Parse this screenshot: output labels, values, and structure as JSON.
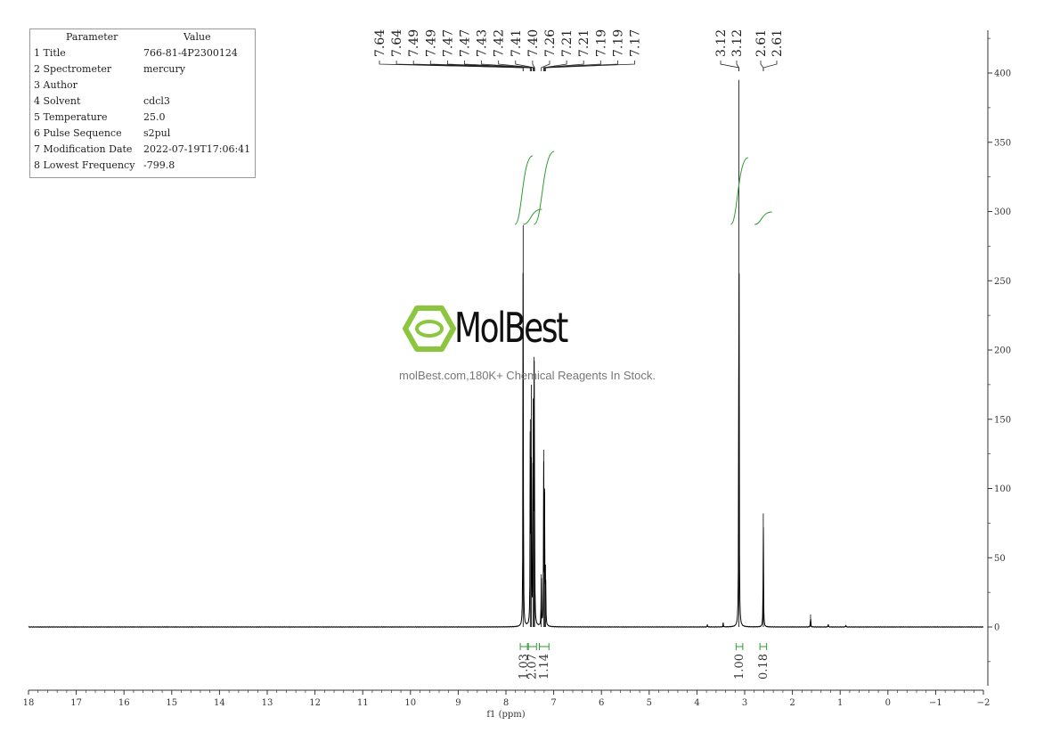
{
  "parameters": {
    "header": {
      "key": "Parameter",
      "value": "Value"
    },
    "rows": [
      {
        "key": "1 Title",
        "value": "766-81-4P2300124"
      },
      {
        "key": "2 Spectrometer",
        "value": "mercury"
      },
      {
        "key": "3 Author",
        "value": ""
      },
      {
        "key": "4 Solvent",
        "value": "cdcl3"
      },
      {
        "key": "5 Temperature",
        "value": "25.0"
      },
      {
        "key": "6 Pulse Sequence",
        "value": "s2pul"
      },
      {
        "key": "7 Modification Date",
        "value": "2022-07-19T17:06:41"
      },
      {
        "key": "8 Lowest Frequency",
        "value": "-799.8"
      }
    ]
  },
  "watermark": {
    "brand": "MolBest",
    "tagline": "molBest.com,180K+ Chemical Reagents In Stock."
  },
  "colors": {
    "spectrum": "#000000",
    "integral": "#2e9b2e",
    "logo": "#8cc63f",
    "axis": "#333333"
  },
  "chart_data": {
    "type": "line",
    "xlabel": "f1 (ppm)",
    "x_axis": {
      "range": [
        18,
        -2
      ],
      "reversed": true,
      "ticks": [
        18,
        17,
        16,
        15,
        14,
        13,
        12,
        11,
        10,
        9,
        8,
        7,
        6,
        5,
        4,
        3,
        2,
        1,
        0,
        -1,
        -2
      ]
    },
    "y_axis": {
      "range": [
        -42,
        435
      ],
      "ticks": [
        0,
        50,
        100,
        150,
        200,
        250,
        300,
        350,
        400
      ],
      "position": "right"
    },
    "tick_labels": [
      "18",
      "17",
      "16",
      "15",
      "14",
      "13",
      "12",
      "11",
      "10",
      "9",
      "8",
      "7",
      "6",
      "5",
      "4",
      "3",
      "2",
      "1",
      "0",
      "−1",
      "−2"
    ],
    "y_tick_labels": [
      "0",
      "50",
      "100",
      "150",
      "200",
      "250",
      "300",
      "350",
      "400"
    ],
    "peaks": [
      {
        "ppm": 7.64,
        "height": 290
      },
      {
        "ppm": 7.49,
        "height": 150
      },
      {
        "ppm": 7.47,
        "height": 175
      },
      {
        "ppm": 7.43,
        "height": 165
      },
      {
        "ppm": 7.41,
        "height": 195
      },
      {
        "ppm": 7.4,
        "height": 55
      },
      {
        "ppm": 7.26,
        "height": 38
      },
      {
        "ppm": 7.21,
        "height": 128
      },
      {
        "ppm": 7.19,
        "height": 100
      },
      {
        "ppm": 7.17,
        "height": 45
      },
      {
        "ppm": 3.12,
        "height": 395
      },
      {
        "ppm": 2.61,
        "height": 82
      },
      {
        "ppm": 1.62,
        "height": 9
      },
      {
        "ppm": 3.78,
        "height": 2
      },
      {
        "ppm": 3.45,
        "height": 3
      },
      {
        "ppm": 1.25,
        "height": 2
      },
      {
        "ppm": 0.88,
        "height": 1.5
      }
    ],
    "peak_labels_group1": [
      "7.64",
      "7.64",
      "7.49",
      "7.49",
      "7.47",
      "7.47",
      "7.43",
      "7.42",
      "7.41",
      "7.40",
      "7.26",
      "7.21",
      "7.21",
      "7.19",
      "7.19",
      "7.17"
    ],
    "peak_labels_group2": [
      "3.12",
      "3.12",
      "2.61",
      "2.61"
    ],
    "integrals": [
      {
        "value": "1.03",
        "from": 7.7,
        "to": 7.55
      },
      {
        "value": "2.07",
        "from": 7.53,
        "to": 7.36
      },
      {
        "value": "1.14",
        "from": 7.3,
        "to": 7.1
      },
      {
        "value": "1.00",
        "from": 3.18,
        "to": 3.04
      },
      {
        "value": "0.18",
        "from": 2.68,
        "to": 2.54
      }
    ]
  }
}
